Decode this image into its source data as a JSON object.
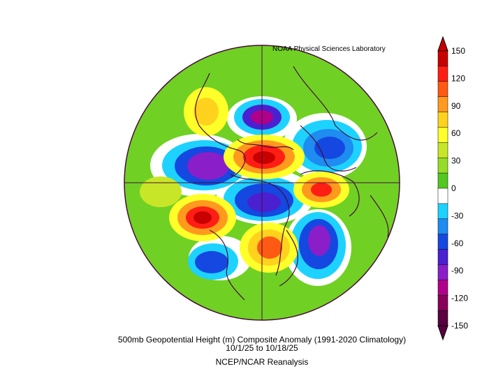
{
  "credit": "NOAA Physical Sciences Laboratory",
  "title_line1": "500mb Geopotential Height (m) Composite Anomaly (1991-2020 Climatology)",
  "title_line2": "10/1/25   to 10/18/25",
  "title_line3": "NCEP/NCAR Reanalysis",
  "colorbar": {
    "labels": [
      "150",
      "120",
      "90",
      "60",
      "30",
      "0",
      "-30",
      "-60",
      "-90",
      "-120",
      "-150"
    ],
    "colors": [
      "#5a0040",
      "#88005a",
      "#b0008a",
      "#8a1ec8",
      "#4a20d0",
      "#1448e0",
      "#1e8cf0",
      "#1ed2ff",
      "#ffffff",
      "#52c820",
      "#96dc28",
      "#c8e628",
      "#ffff2a",
      "#ffd21e",
      "#ff9a1e",
      "#ff5a14",
      "#ff1e14",
      "#c80000"
    ]
  },
  "map": {
    "projection": "North Polar Stereographic",
    "features": [
      {
        "name": "ridge-central-arctic",
        "type": "positive",
        "color": "#c80000"
      },
      {
        "name": "ridge-north-pacific",
        "type": "positive",
        "color": "#c80000"
      },
      {
        "name": "ridge-eastern-north-america",
        "type": "positive",
        "color": "#ff5a14"
      },
      {
        "name": "ridge-siberia",
        "type": "positive",
        "color": "#ff5a14"
      },
      {
        "name": "trough-north-atlantic",
        "type": "negative",
        "color": "#8a1ec8"
      },
      {
        "name": "trough-scandinavia",
        "type": "negative",
        "color": "#1448e0"
      },
      {
        "name": "trough-western-europe",
        "type": "negative",
        "color": "#b0008a"
      },
      {
        "name": "trough-central-pole",
        "type": "negative",
        "color": "#4a20d0"
      },
      {
        "name": "trough-east-pacific",
        "type": "negative",
        "color": "#1448e0"
      }
    ]
  }
}
